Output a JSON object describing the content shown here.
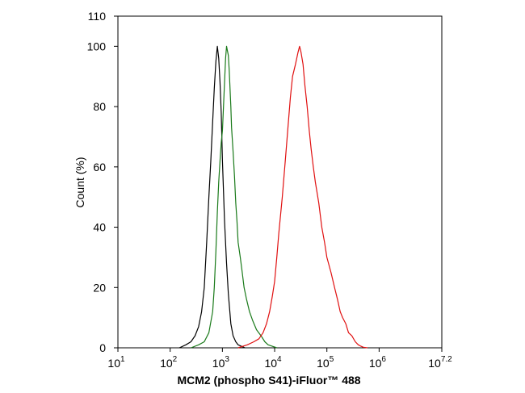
{
  "chart_data": {
    "type": "line",
    "title": "",
    "xlabel": "MCM2 (phospho S41)-iFluor™ 488",
    "ylabel": "Count  (%)",
    "xscale": "log",
    "xlim": [
      10,
      15848932
    ],
    "ylim": [
      0,
      110
    ],
    "grid": false,
    "x_ticks": [
      {
        "base": "10",
        "exp": "1"
      },
      {
        "base": "10",
        "exp": "2"
      },
      {
        "base": "10",
        "exp": "3"
      },
      {
        "base": "10",
        "exp": "4"
      },
      {
        "base": "10",
        "exp": "5"
      },
      {
        "base": "10",
        "exp": "6"
      },
      {
        "base": "10",
        "exp": "7.2"
      }
    ],
    "y_ticks": [
      "0",
      "20",
      "40",
      "60",
      "80",
      "100",
      "110"
    ],
    "series": [
      {
        "color": "#000000",
        "x": [
          150,
          200,
          250,
          300,
          350,
          400,
          450,
          500,
          550,
          600,
          650,
          700,
          750,
          800,
          850,
          900,
          950,
          1000,
          1050,
          1100,
          1200,
          1300,
          1450,
          1600,
          1800,
          2000,
          2300,
          2700
        ],
        "y": [
          0,
          1,
          2,
          4,
          7,
          12,
          20,
          35,
          50,
          62,
          75,
          86,
          95,
          100,
          96,
          88,
          78,
          62,
          52,
          42,
          28,
          18,
          8,
          4,
          2,
          1,
          0.5,
          0
        ]
      },
      {
        "color": "#1a7a1a",
        "x": [
          250,
          350,
          450,
          550,
          650,
          700,
          750,
          800,
          850,
          900,
          950,
          1000,
          1050,
          1100,
          1150,
          1200,
          1300,
          1350,
          1400,
          1450,
          1500,
          1600,
          1700,
          1800,
          1900,
          2000,
          2200,
          2400,
          2600,
          2900,
          3300,
          3800,
          4500,
          5500,
          6500,
          7500,
          9000,
          11000
        ],
        "y": [
          0,
          1,
          2,
          5,
          12,
          20,
          32,
          45,
          55,
          62,
          68,
          72,
          80,
          88,
          96,
          100,
          97,
          92,
          86,
          80,
          73,
          65,
          57,
          48,
          42,
          35,
          30,
          25,
          20,
          16,
          12,
          9,
          6,
          4,
          2,
          1,
          0.5,
          0
        ]
      },
      {
        "color": "#e01010",
        "x": [
          2000,
          3000,
          4000,
          5000,
          6000,
          7000,
          8000,
          9000,
          10000,
          11000,
          12000,
          14000,
          16000,
          18000,
          20000,
          22000,
          25000,
          28000,
          30000,
          32000,
          35000,
          38000,
          42000,
          46000,
          50000,
          55000,
          60000,
          70000,
          80000,
          90000,
          100000,
          120000,
          140000,
          160000,
          180000,
          200000,
          230000,
          260000,
          300000,
          350000,
          400000,
          450000,
          500000,
          600000
        ],
        "y": [
          0,
          1,
          2,
          3,
          5,
          8,
          12,
          17,
          22,
          30,
          38,
          50,
          62,
          73,
          83,
          90,
          94,
          98,
          100,
          98,
          94,
          87,
          80,
          72,
          66,
          60,
          55,
          48,
          40,
          35,
          30,
          25,
          20,
          16,
          12,
          10,
          8,
          5,
          4,
          2,
          1,
          0.5,
          0.2,
          0
        ]
      }
    ]
  }
}
